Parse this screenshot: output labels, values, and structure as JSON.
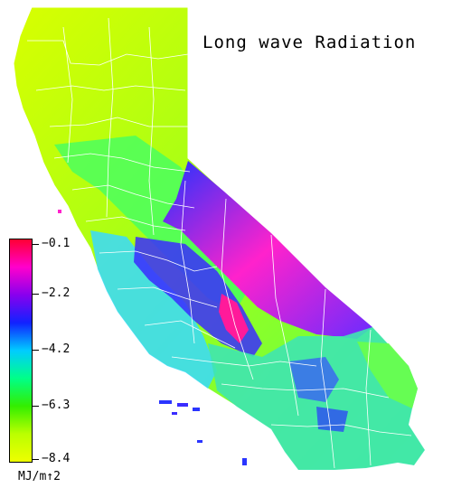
{
  "title": "Long wave Radiation",
  "legend": {
    "ticks": [
      "−0.1",
      "−2.2",
      "−4.2",
      "−6.3",
      "−8.4"
    ],
    "units": "MJ/m↑2",
    "max": -0.1,
    "min": -8.4,
    "gradient_colors": [
      "#ff0033",
      "#ff00cc",
      "#8800ee",
      "#1122ff",
      "#00ccff",
      "#00ff88",
      "#33ee00",
      "#bbff00",
      "#eeff00"
    ]
  },
  "regions": {
    "north_coast_and_valley": "#b8f21a",
    "central_valley": "#4cff5c",
    "sierra_high": "#ff22cc",
    "sierra_mid": "#3322ff",
    "coast_ranges": "#3fd3ff",
    "southern_desert": "#3fe6b0",
    "county_lines": "#ffffff"
  }
}
